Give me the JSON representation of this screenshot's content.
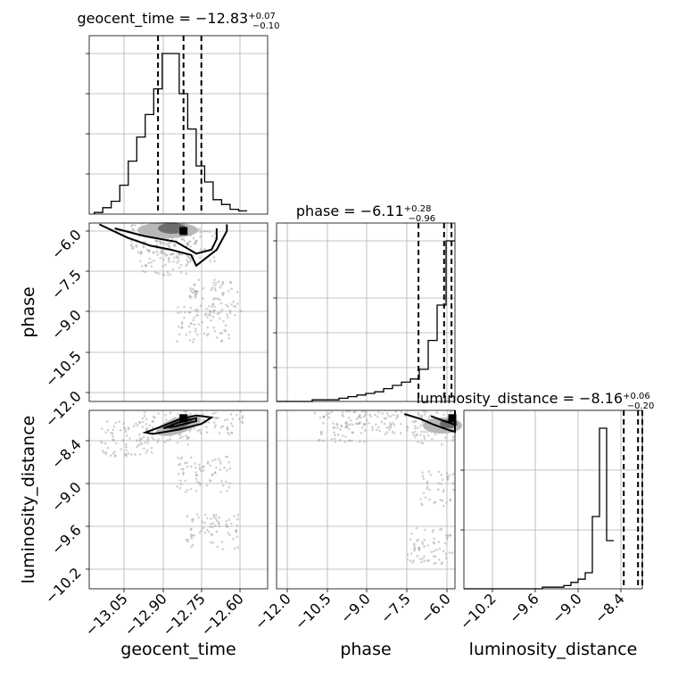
{
  "chart_data": {
    "type": "corner",
    "parameters": [
      {
        "name": "geocent_time",
        "label": "geocent_time",
        "range": [
          -13.2,
          -12.5
        ],
        "ticks": [
          -13.05,
          -12.9,
          -12.75,
          -12.6
        ],
        "tick_labels": [
          "−13.05",
          "−12.90",
          "−12.75",
          "−12.60"
        ],
        "title": "geocent_time = −12.83",
        "title_sup": "+0.07",
        "title_sub": "−0.10",
        "quantiles": [
          -12.93,
          -12.83,
          -12.76
        ],
        "hist_edges_start": -13.18,
        "hist_bin_width": 0.0333,
        "hist_counts": [
          1,
          4,
          8,
          18,
          33,
          48,
          62,
          78,
          100,
          100,
          75,
          53,
          30,
          20,
          9,
          6,
          3,
          2
        ]
      },
      {
        "name": "phase",
        "label": "phase",
        "range": [
          -12.4,
          -5.7
        ],
        "ticks": [
          -12.0,
          -10.5,
          -9.0,
          -7.5,
          -6.0
        ],
        "tick_labels": [
          "−12.0",
          "−10.5",
          "−9.0",
          "−7.5",
          "−6.0"
        ],
        "title": "phase = −6.11",
        "title_sup": "+0.28",
        "title_sub": "−0.96",
        "quantiles": [
          -7.07,
          -6.11,
          -5.83
        ],
        "hist_edges_start": -12.4,
        "hist_bin_width": 0.335,
        "hist_counts": [
          0,
          0,
          0,
          0,
          1,
          1,
          1,
          2,
          3,
          4,
          5,
          6,
          8,
          10,
          12,
          14,
          20,
          38,
          60,
          100
        ]
      },
      {
        "name": "luminosity_distance",
        "label": "luminosity_distance",
        "range": [
          -10.6,
          -8.1
        ],
        "ticks": [
          -10.2,
          -9.6,
          -9.0,
          -8.4
        ],
        "tick_labels": [
          "−10.2",
          "−9.6",
          "−9.0",
          "−8.4"
        ],
        "title": "luminosity_distance = −8.16",
        "title_sup": "+0.06",
        "title_sub": "−0.20",
        "quantiles": [
          -8.36,
          -8.16,
          -8.1
        ],
        "hist_edges_start": -10.6,
        "hist_bin_width": 0.1,
        "hist_counts": [
          0,
          0,
          0,
          0,
          0,
          0,
          0,
          0,
          0,
          0,
          0,
          1,
          1,
          1,
          2,
          4,
          6,
          10,
          45,
          100,
          30
        ]
      }
    ],
    "pairs": [
      {
        "x": "geocent_time",
        "y": "phase",
        "max_point": [
          -12.83,
          -6.0
        ],
        "contour_outer": [
          [
            -13.16,
            -5.75
          ],
          [
            -13.05,
            -6.25
          ],
          [
            -12.96,
            -6.55
          ],
          [
            -12.88,
            -6.7
          ],
          [
            -12.8,
            -6.9
          ],
          [
            -12.78,
            -7.3
          ],
          [
            -12.74,
            -7.0
          ],
          [
            -12.7,
            -6.7
          ],
          [
            -12.66,
            -6.0
          ],
          [
            -12.66,
            -5.75
          ]
        ],
        "contour_inner": [
          [
            -13.1,
            -5.9
          ],
          [
            -12.98,
            -6.2
          ],
          [
            -12.86,
            -6.4
          ],
          [
            -12.78,
            -6.85
          ],
          [
            -12.72,
            -6.7
          ],
          [
            -12.7,
            -6.3
          ],
          [
            -12.7,
            -5.9
          ]
        ],
        "scatter_centers": [
          [
            -12.8,
            -6.5
          ],
          [
            -12.9,
            -7.0
          ],
          [
            -12.7,
            -8.5
          ],
          [
            -12.75,
            -9.5
          ],
          [
            -12.95,
            -6.2
          ]
        ]
      },
      {
        "x": "geocent_time",
        "y": "luminosity_distance",
        "max_point": [
          -12.83,
          -8.21
        ],
        "contour_outer": [
          [
            -12.98,
            -8.41
          ],
          [
            -12.92,
            -8.33
          ],
          [
            -12.85,
            -8.23
          ],
          [
            -12.78,
            -8.17
          ],
          [
            -12.72,
            -8.2
          ],
          [
            -12.76,
            -8.29
          ],
          [
            -12.85,
            -8.37
          ],
          [
            -12.95,
            -8.43
          ]
        ],
        "contour_inner": [
          [
            -12.91,
            -8.35
          ],
          [
            -12.85,
            -8.27
          ],
          [
            -12.78,
            -8.21
          ],
          [
            -12.78,
            -8.25
          ],
          [
            -12.86,
            -8.32
          ]
        ],
        "scatter_centers": [
          [
            -13.05,
            -8.5
          ],
          [
            -12.9,
            -8.35
          ],
          [
            -12.7,
            -8.2
          ],
          [
            -12.75,
            -9.0
          ],
          [
            -12.72,
            -9.8
          ]
        ]
      },
      {
        "x": "phase",
        "y": "luminosity_distance",
        "max_point": [
          -5.8,
          -8.21
        ],
        "contour_outer": [
          [
            -7.6,
            -8.15
          ],
          [
            -7.0,
            -8.22
          ],
          [
            -6.5,
            -8.3
          ],
          [
            -5.9,
            -8.38
          ],
          [
            -5.7,
            -8.4
          ],
          [
            -5.7,
            -8.1
          ]
        ],
        "contour_inner": [
          [
            -6.6,
            -8.18
          ],
          [
            -6.1,
            -8.25
          ],
          [
            -5.7,
            -8.3
          ],
          [
            -5.7,
            -8.15
          ]
        ],
        "scatter_centers": [
          [
            -9.0,
            -8.15
          ],
          [
            -7.5,
            -8.2
          ],
          [
            -6.2,
            -8.35
          ],
          [
            -6.0,
            -9.2
          ],
          [
            -6.5,
            -10.0
          ],
          [
            -10.0,
            -8.3
          ]
        ]
      }
    ]
  }
}
